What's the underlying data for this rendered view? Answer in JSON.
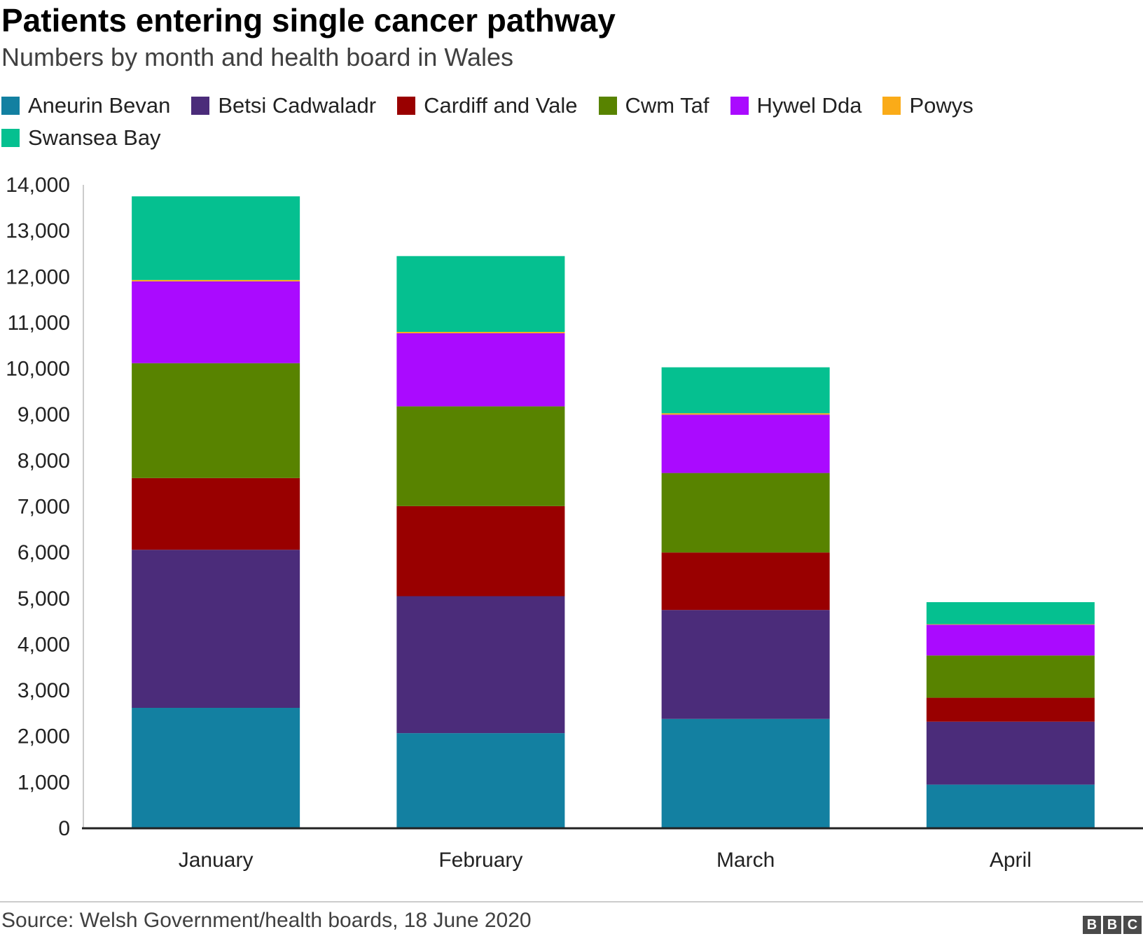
{
  "chart_data": {
    "type": "bar",
    "stacked": true,
    "title": "Patients entering single cancer pathway",
    "subtitle": "Numbers by month and health board in Wales",
    "categories": [
      "January",
      "February",
      "March",
      "April"
    ],
    "series": [
      {
        "name": "Aneurin Bevan",
        "color": "#1380A1",
        "values": [
          2620,
          2070,
          2380,
          950
        ]
      },
      {
        "name": "Betsi Cadwaladr",
        "color": "#4B2C7A",
        "values": [
          3440,
          2980,
          2370,
          1370
        ]
      },
      {
        "name": "Cardiff and Vale",
        "color": "#990000",
        "values": [
          1560,
          1960,
          1250,
          520
        ]
      },
      {
        "name": "Cwm Taf",
        "color": "#588300",
        "values": [
          2500,
          2170,
          1730,
          920
        ]
      },
      {
        "name": "Hywel Dda",
        "color": "#AA0AFF",
        "values": [
          1780,
          1590,
          1270,
          670
        ]
      },
      {
        "name": "Powys",
        "color": "#FAAB18",
        "values": [
          30,
          30,
          30,
          10
        ]
      },
      {
        "name": "Swansea Bay",
        "color": "#05C090",
        "values": [
          1820,
          1650,
          1000,
          480
        ]
      }
    ],
    "xlabel": "",
    "ylabel": "",
    "ylim": [
      0,
      14000
    ],
    "yticks": [
      0,
      1000,
      2000,
      3000,
      4000,
      5000,
      6000,
      7000,
      8000,
      9000,
      10000,
      11000,
      12000,
      13000,
      14000
    ],
    "ytick_labels": [
      "0",
      "1,000",
      "2,000",
      "3,000",
      "4,000",
      "5,000",
      "6,000",
      "7,000",
      "8,000",
      "9,000",
      "10,000",
      "11,000",
      "12,000",
      "13,000",
      "14,000"
    ],
    "grid": false,
    "legend_position": "top-left"
  },
  "footer": {
    "source": "Source: Welsh Government/health boards, 18 June 2020",
    "logo_letters": [
      "B",
      "B",
      "C"
    ]
  }
}
